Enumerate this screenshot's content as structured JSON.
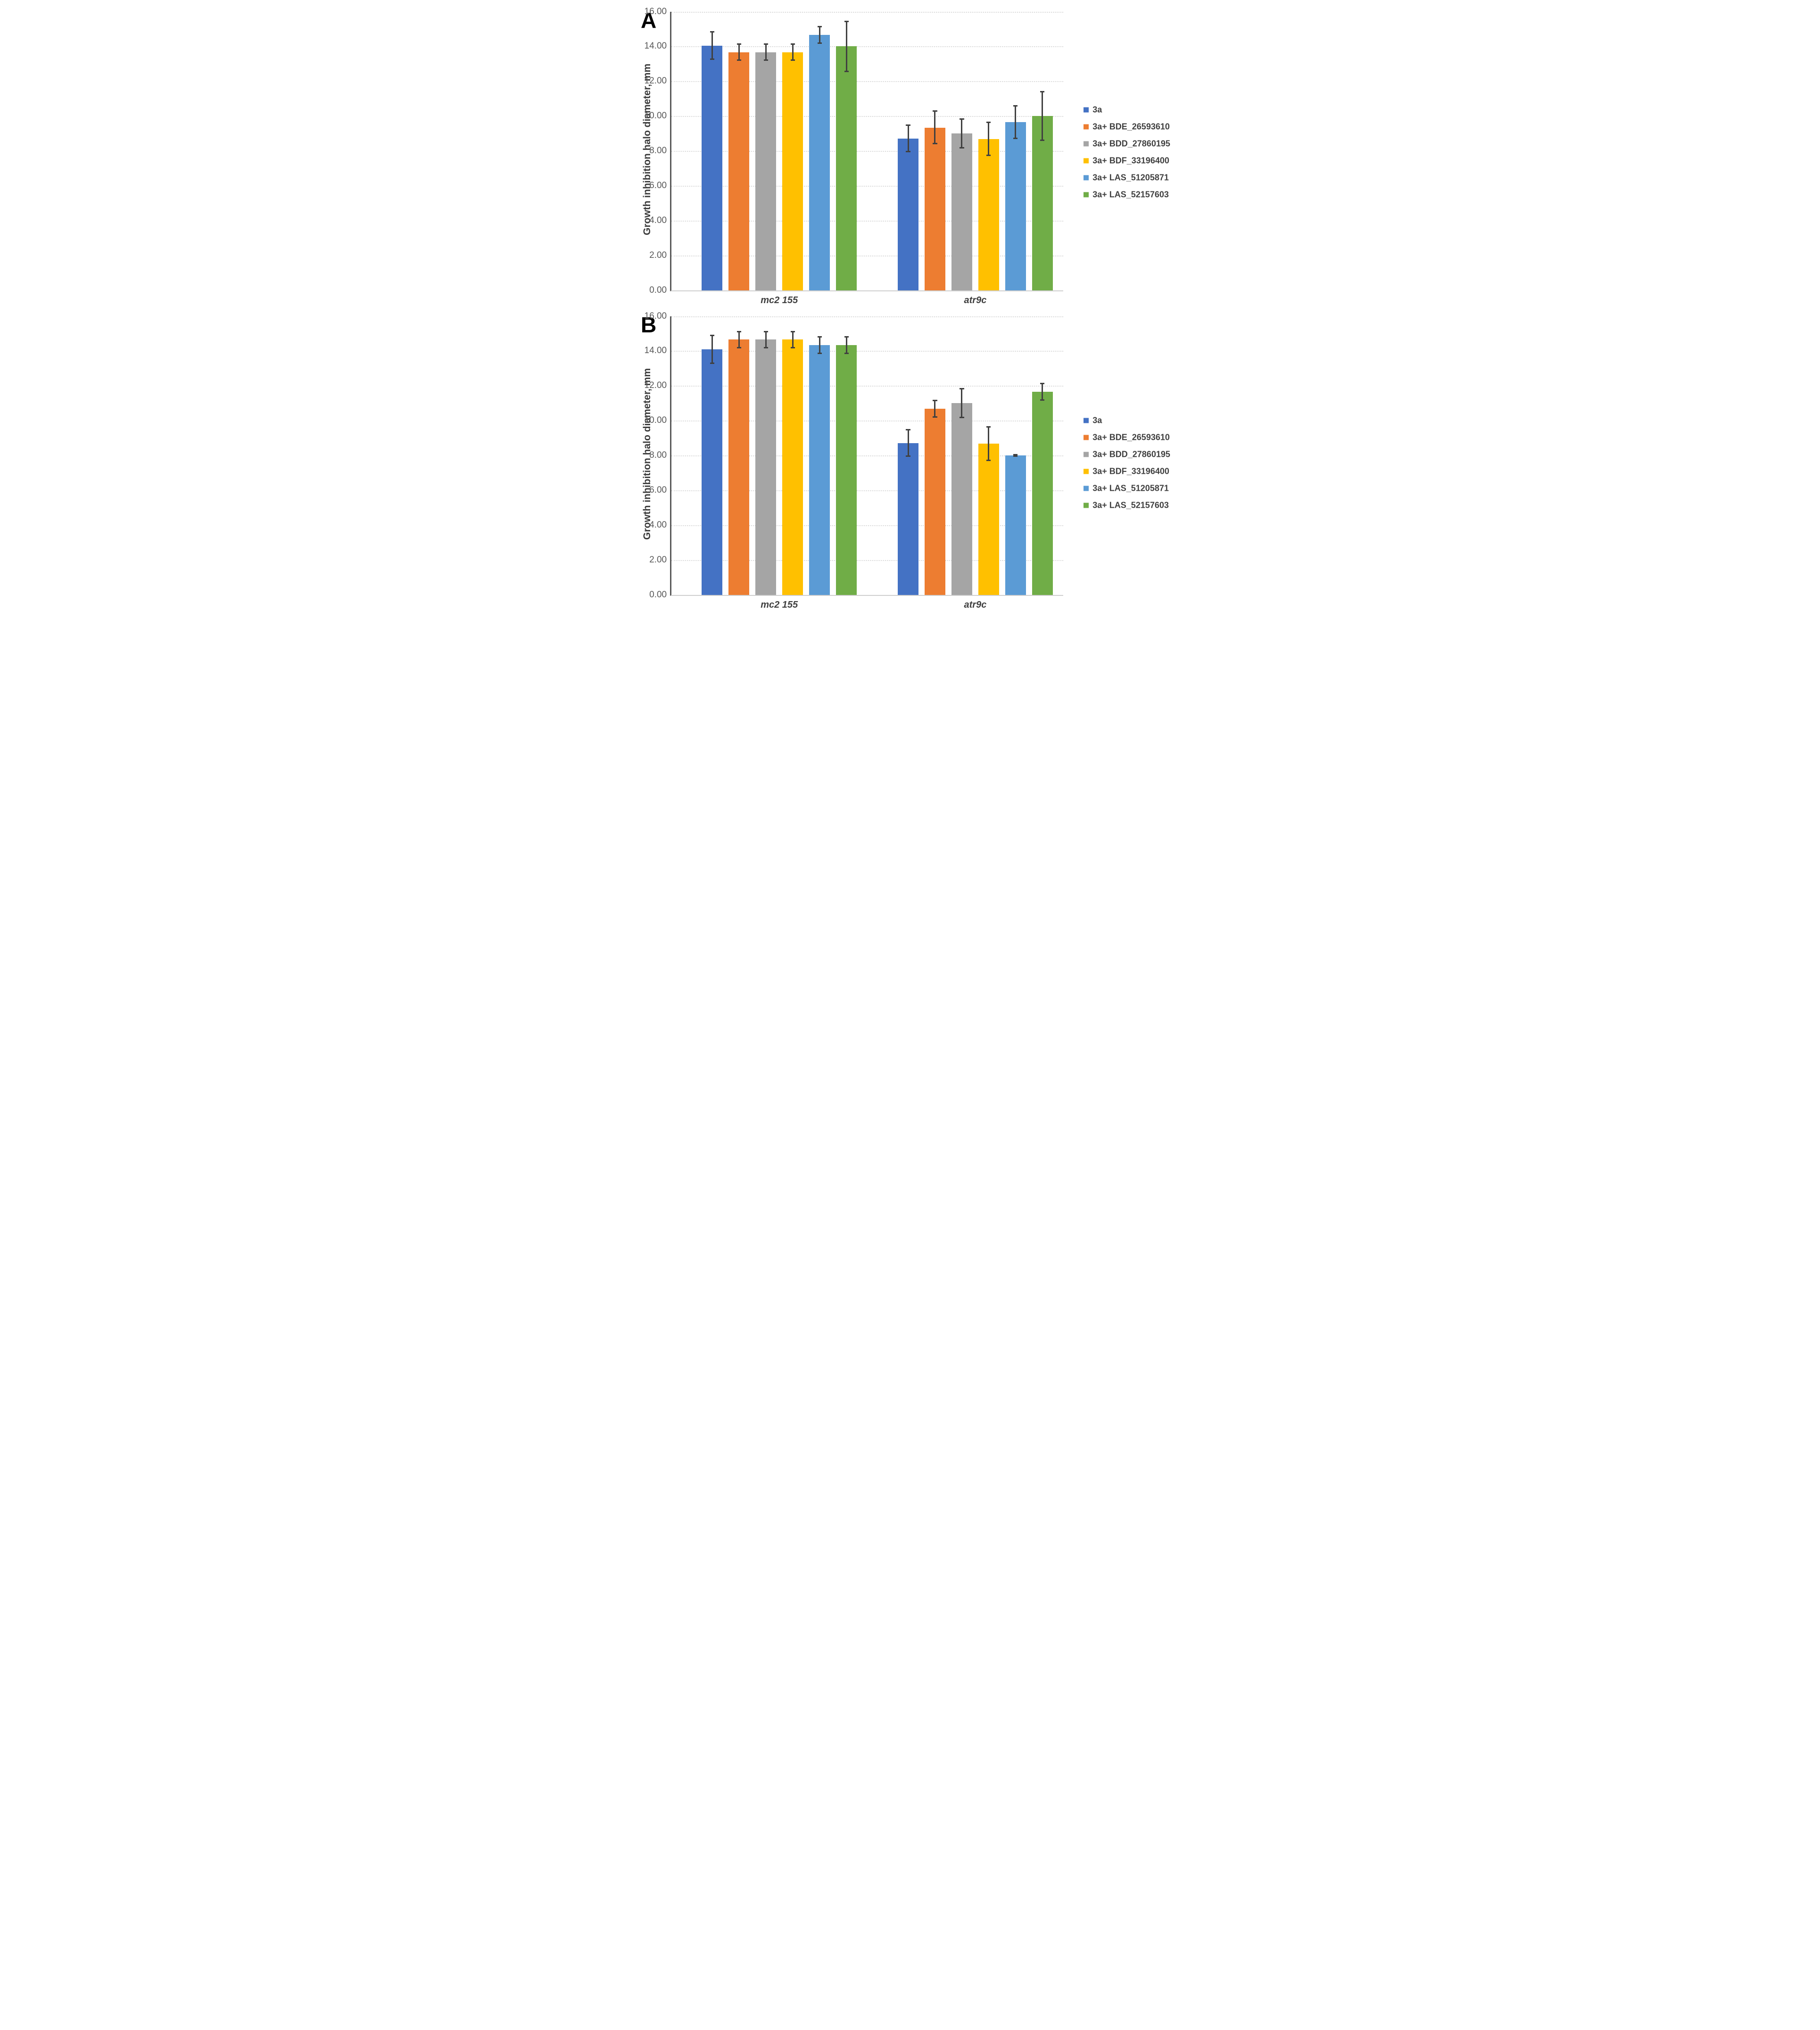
{
  "figure": {
    "background": "#FFFFFF",
    "grid_color": "#D9D9D9",
    "axis_color": "#595959",
    "baseline_color": "#CFCFCF",
    "error_bar_color": "#404040",
    "text_color": "#404040",
    "tick_text_color": "#595959"
  },
  "chart_data": [
    {
      "type": "bar",
      "panel_label": "A",
      "title": "",
      "xlabel": "",
      "ylabel": "Growth inhibition halo diameter, mm",
      "ylim": [
        0,
        16
      ],
      "y_ticks": [
        "16.00",
        "14.00",
        "12.00",
        "10.00",
        "8.00",
        "6.00",
        "4.00",
        "2.00",
        "0.00"
      ],
      "grid": "horizontal-dotted",
      "legend_position": "right",
      "categories": [
        "mc2 155",
        "atr9c"
      ],
      "series": [
        {
          "name": "3a",
          "color": "#4472C4",
          "values": [
            14.05,
            8.72
          ],
          "error_low": [
            13.28,
            7.97
          ],
          "error_high": [
            14.85,
            9.47
          ]
        },
        {
          "name": "3a+ BDE_26593610",
          "color": "#ED7D31",
          "values": [
            13.67,
            9.34
          ],
          "error_low": [
            13.2,
            8.41
          ],
          "error_high": [
            14.13,
            10.28
          ]
        },
        {
          "name": "3a+ BDD_27860195",
          "color": "#A5A5A5",
          "values": [
            13.67,
            9.0
          ],
          "error_low": [
            13.2,
            8.18
          ],
          "error_high": [
            14.13,
            9.83
          ]
        },
        {
          "name": "3a+ BDF_33196400",
          "color": "#FFC000",
          "values": [
            13.67,
            8.68
          ],
          "error_low": [
            13.2,
            7.74
          ],
          "error_high": [
            14.13,
            9.63
          ]
        },
        {
          "name": "3a+ LAS_51205871",
          "color": "#5B9BD5",
          "values": [
            14.65,
            9.66
          ],
          "error_low": [
            14.18,
            8.73
          ],
          "error_high": [
            15.13,
            10.6
          ]
        },
        {
          "name": "3a+ LAS_52157603",
          "color": "#70AD47",
          "values": [
            14.0,
            10.0
          ],
          "error_low": [
            12.57,
            8.6
          ],
          "error_high": [
            15.42,
            11.39
          ]
        }
      ]
    },
    {
      "type": "bar",
      "panel_label": "B",
      "title": "",
      "xlabel": "",
      "ylabel": "Growth inhibition halo diameter, mm",
      "ylim": [
        0,
        16
      ],
      "y_ticks": [
        "16.00",
        "14.00",
        "12.00",
        "10.00",
        "8.00",
        "6.00",
        "4.00",
        "2.00",
        "0.00"
      ],
      "grid": "horizontal-dotted",
      "legend_position": "right",
      "categories": [
        "mc2 155",
        "atr9c"
      ],
      "series": [
        {
          "name": "3a",
          "color": "#4472C4",
          "values": [
            14.1,
            8.71
          ],
          "error_low": [
            13.29,
            7.97
          ],
          "error_high": [
            14.9,
            9.47
          ]
        },
        {
          "name": "3a+ BDE_26593610",
          "color": "#ED7D31",
          "values": [
            14.65,
            10.67
          ],
          "error_low": [
            14.18,
            10.21
          ],
          "error_high": [
            15.12,
            11.16
          ]
        },
        {
          "name": "3a+ BDD_27860195",
          "color": "#A5A5A5",
          "values": [
            14.65,
            11.0
          ],
          "error_low": [
            14.18,
            10.18
          ],
          "error_high": [
            15.12,
            11.84
          ]
        },
        {
          "name": "3a+ BDF_33196400",
          "color": "#FFC000",
          "values": [
            14.65,
            8.67
          ],
          "error_low": [
            14.18,
            7.73
          ],
          "error_high": [
            15.12,
            9.63
          ]
        },
        {
          "name": "3a+ LAS_51205871",
          "color": "#5B9BD5",
          "values": [
            14.33,
            8.0
          ],
          "error_low": [
            13.85,
            7.95
          ],
          "error_high": [
            14.81,
            8.05
          ]
        },
        {
          "name": "3a+ LAS_52157603",
          "color": "#70AD47",
          "values": [
            14.33,
            11.67
          ],
          "error_low": [
            13.86,
            11.18
          ],
          "error_high": [
            14.81,
            12.14
          ]
        }
      ]
    }
  ]
}
